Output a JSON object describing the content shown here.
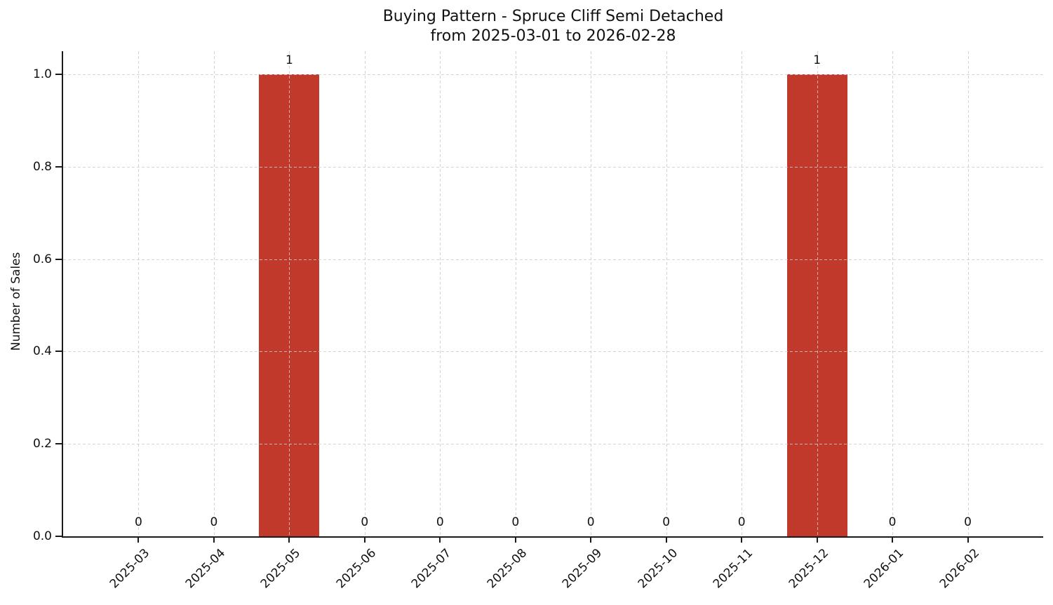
{
  "chart_data": {
    "type": "bar",
    "title": "Buying Pattern - Spruce Cliff Semi Detached",
    "subtitle": "from 2025-03-01 to 2026-02-28",
    "xlabel": "",
    "ylabel": "Number of Sales",
    "categories": [
      "2025-03",
      "2025-04",
      "2025-05",
      "2025-06",
      "2025-07",
      "2025-08",
      "2025-09",
      "2025-10",
      "2025-11",
      "2025-12",
      "2026-01",
      "2026-02"
    ],
    "values": [
      0,
      0,
      1,
      0,
      0,
      0,
      0,
      0,
      0,
      1,
      0,
      0
    ],
    "yticks": [
      0.0,
      0.2,
      0.4,
      0.6,
      0.8,
      1.0
    ],
    "ytick_label_format": "one_decimal",
    "ylim": [
      0,
      1.05
    ],
    "grid": true,
    "grid_style": "dashed",
    "legend": false,
    "bar_color": "#c0392b",
    "bar_value_labels": true,
    "x_tick_rotation_deg": 45
  }
}
